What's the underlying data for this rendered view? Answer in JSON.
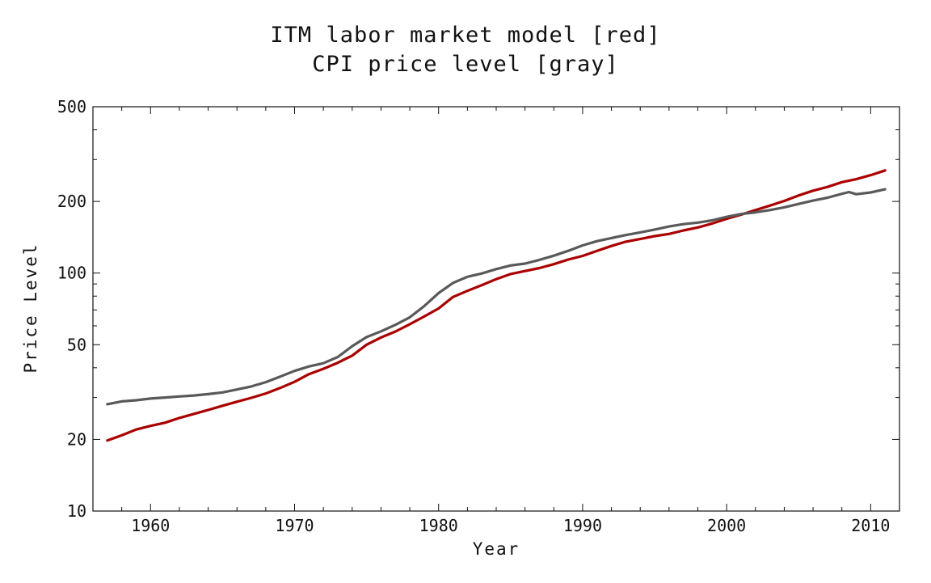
{
  "chart_data": {
    "type": "line",
    "title_lines": [
      "ITM labor market model [red]",
      "CPI price level [gray]"
    ],
    "xlabel": "Year",
    "ylabel": "Price Level",
    "y_scale": "log",
    "xlim": [
      1956,
      2012
    ],
    "ylim": [
      10,
      500
    ],
    "x_ticks": [
      1960,
      1970,
      1980,
      1990,
      2000,
      2010
    ],
    "y_ticks": [
      10,
      20,
      50,
      100,
      200,
      500
    ],
    "y_tick_labels": [
      "10",
      "20",
      "50",
      "100",
      "200",
      "500"
    ],
    "grid": false,
    "series": [
      {
        "color": "#aa0000",
        "x": [
          1957,
          1958,
          1959,
          1960,
          1961,
          1962,
          1963,
          1964,
          1965,
          1966,
          1967,
          1968,
          1969,
          1970,
          1971,
          1972,
          1973,
          1974,
          1975,
          1976,
          1977,
          1978,
          1979,
          1980,
          1981,
          1982,
          1983,
          1984,
          1985,
          1986,
          1987,
          1988,
          1989,
          1990,
          1991,
          1992,
          1993,
          1994,
          1995,
          1996,
          1997,
          1998,
          1999,
          2000,
          2001,
          2002,
          2003,
          2004,
          2005,
          2006,
          2007,
          2008,
          2009,
          2010,
          2011
        ],
        "y": [
          19.8,
          20.8,
          22.0,
          22.8,
          23.5,
          24.6,
          25.6,
          26.6,
          27.7,
          28.8,
          29.9,
          31.2,
          32.9,
          34.9,
          37.6,
          39.6,
          42.0,
          45.0,
          50.0,
          53.6,
          56.8,
          61.0,
          65.7,
          71.0,
          79.3,
          84.2,
          89.0,
          94.3,
          99.1,
          102.0,
          105.0,
          109.0,
          114.0,
          118.0,
          124.0,
          130.0,
          135.5,
          139.0,
          143.0,
          146.0,
          151.0,
          155.5,
          161.5,
          169.0,
          176.0,
          184.0,
          192.0,
          201.0,
          212.0,
          222.0,
          230.0,
          241.0,
          248.0,
          258.0,
          270.0
        ]
      },
      {
        "color": "#595959",
        "x": [
          1957,
          1958,
          1959,
          1960,
          1961,
          1962,
          1963,
          1964,
          1965,
          1966,
          1967,
          1968,
          1969,
          1970,
          1971,
          1972,
          1973,
          1974,
          1975,
          1976,
          1977,
          1978,
          1979,
          1980,
          1981,
          1982,
          1983,
          1984,
          1985,
          1986,
          1987,
          1988,
          1989,
          1990,
          1991,
          1992,
          1993,
          1994,
          1995,
          1996,
          1997,
          1998,
          1999,
          2000,
          2001,
          2002,
          2003,
          2004,
          2005,
          2006,
          2007,
          2008,
          2008.5,
          2009,
          2010,
          2011
        ],
        "y": [
          28.1,
          28.9,
          29.2,
          29.7,
          30.0,
          30.3,
          30.6,
          31.0,
          31.5,
          32.4,
          33.4,
          34.8,
          36.7,
          38.8,
          40.5,
          41.8,
          44.4,
          49.3,
          53.8,
          56.9,
          60.6,
          65.2,
          72.6,
          82.4,
          90.9,
          96.5,
          99.6,
          103.9,
          107.6,
          109.6,
          113.6,
          118.3,
          124.0,
          130.7,
          136.2,
          140.3,
          144.5,
          148.2,
          152.4,
          156.9,
          160.5,
          163.0,
          166.6,
          172.2,
          177.1,
          179.9,
          184.0,
          188.9,
          195.3,
          201.6,
          207.3,
          215.3,
          219.0,
          214.5,
          218.1,
          224.9
        ]
      }
    ]
  }
}
